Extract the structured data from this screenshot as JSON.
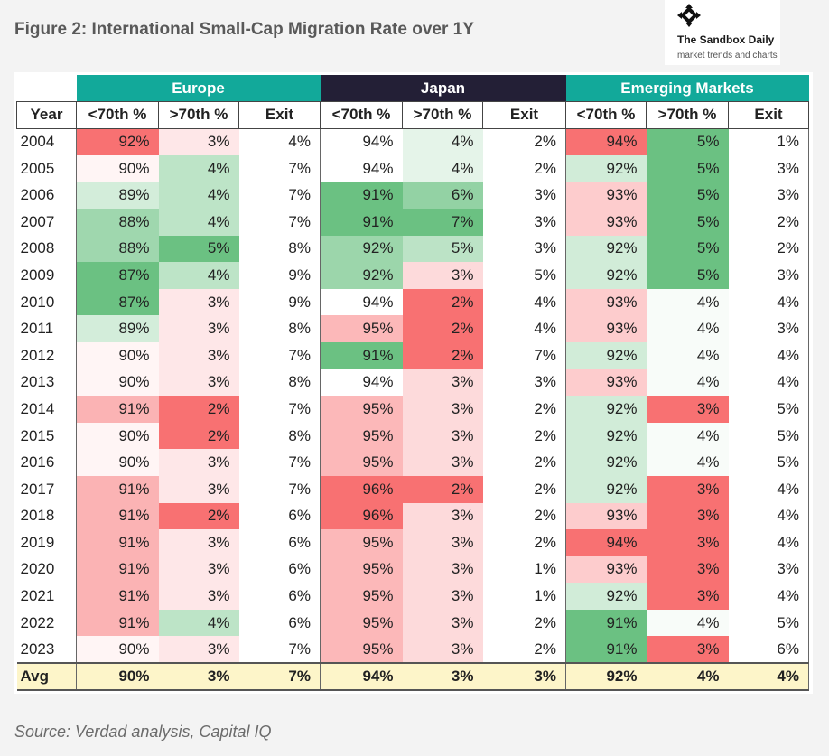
{
  "title": "Figure 2: International Small-Cap Migration Rate over 1Y",
  "brand": {
    "name": "The Sandbox Daily",
    "tagline": "market trends and charts",
    "icon": "compass-cross-icon"
  },
  "source": "Source: Verdad analysis, Capital IQ",
  "colors": {
    "europe_header": "#12a99a",
    "japan_header": "#231f36",
    "em_header": "#12a99a",
    "avg_row": "#fdf5c9",
    "green_strong": "#63be7b",
    "red_strong": "#f8696b",
    "neutral": "#ffffff"
  },
  "chart_data": {
    "type": "table",
    "title": "Figure 2: International Small-Cap Migration Rate over 1Y",
    "groups": [
      "Europe",
      "Japan",
      "Emerging Markets"
    ],
    "columns": [
      "Year",
      "<70th %",
      ">70th %",
      "Exit",
      "<70th %",
      ">70th %",
      "Exit",
      "<70th %",
      ">70th %",
      "Exit"
    ],
    "rows": [
      {
        "year": "2004",
        "values": [
          "92%",
          "3%",
          "4%",
          "94%",
          "4%",
          "2%",
          "94%",
          "5%",
          "1%"
        ]
      },
      {
        "year": "2005",
        "values": [
          "90%",
          "4%",
          "7%",
          "94%",
          "4%",
          "2%",
          "92%",
          "5%",
          "3%"
        ]
      },
      {
        "year": "2006",
        "values": [
          "89%",
          "4%",
          "7%",
          "91%",
          "6%",
          "3%",
          "93%",
          "5%",
          "3%"
        ]
      },
      {
        "year": "2007",
        "values": [
          "88%",
          "4%",
          "7%",
          "91%",
          "7%",
          "3%",
          "93%",
          "5%",
          "2%"
        ]
      },
      {
        "year": "2008",
        "values": [
          "88%",
          "5%",
          "8%",
          "92%",
          "5%",
          "3%",
          "92%",
          "5%",
          "2%"
        ]
      },
      {
        "year": "2009",
        "values": [
          "87%",
          "4%",
          "9%",
          "92%",
          "3%",
          "5%",
          "92%",
          "5%",
          "3%"
        ]
      },
      {
        "year": "2010",
        "values": [
          "87%",
          "3%",
          "9%",
          "94%",
          "2%",
          "4%",
          "93%",
          "4%",
          "4%"
        ]
      },
      {
        "year": "2011",
        "values": [
          "89%",
          "3%",
          "8%",
          "95%",
          "2%",
          "4%",
          "93%",
          "4%",
          "3%"
        ]
      },
      {
        "year": "2012",
        "values": [
          "90%",
          "3%",
          "7%",
          "91%",
          "2%",
          "7%",
          "92%",
          "4%",
          "4%"
        ]
      },
      {
        "year": "2013",
        "values": [
          "90%",
          "3%",
          "8%",
          "94%",
          "3%",
          "3%",
          "93%",
          "4%",
          "4%"
        ]
      },
      {
        "year": "2014",
        "values": [
          "91%",
          "2%",
          "7%",
          "95%",
          "3%",
          "2%",
          "92%",
          "3%",
          "5%"
        ]
      },
      {
        "year": "2015",
        "values": [
          "90%",
          "2%",
          "8%",
          "95%",
          "3%",
          "2%",
          "92%",
          "4%",
          "5%"
        ]
      },
      {
        "year": "2016",
        "values": [
          "90%",
          "3%",
          "7%",
          "95%",
          "3%",
          "2%",
          "92%",
          "4%",
          "5%"
        ]
      },
      {
        "year": "2017",
        "values": [
          "91%",
          "3%",
          "7%",
          "96%",
          "2%",
          "2%",
          "92%",
          "3%",
          "4%"
        ]
      },
      {
        "year": "2018",
        "values": [
          "91%",
          "2%",
          "6%",
          "96%",
          "3%",
          "2%",
          "93%",
          "3%",
          "4%"
        ]
      },
      {
        "year": "2019",
        "values": [
          "91%",
          "3%",
          "6%",
          "95%",
          "3%",
          "2%",
          "94%",
          "3%",
          "4%"
        ]
      },
      {
        "year": "2020",
        "values": [
          "91%",
          "3%",
          "6%",
          "95%",
          "3%",
          "1%",
          "93%",
          "3%",
          "3%"
        ]
      },
      {
        "year": "2021",
        "values": [
          "91%",
          "3%",
          "6%",
          "95%",
          "3%",
          "1%",
          "92%",
          "3%",
          "4%"
        ]
      },
      {
        "year": "2022",
        "values": [
          "91%",
          "4%",
          "6%",
          "95%",
          "3%",
          "2%",
          "91%",
          "4%",
          "5%"
        ]
      },
      {
        "year": "2023",
        "values": [
          "90%",
          "3%",
          "7%",
          "95%",
          "3%",
          "2%",
          "91%",
          "3%",
          "6%"
        ]
      }
    ],
    "avg": {
      "label": "Avg",
      "values": [
        "90%",
        "3%",
        "7%",
        "94%",
        "3%",
        "3%",
        "92%",
        "4%",
        "4%"
      ]
    },
    "heatmap_columns": [
      0,
      1,
      3,
      4,
      6,
      7
    ]
  }
}
